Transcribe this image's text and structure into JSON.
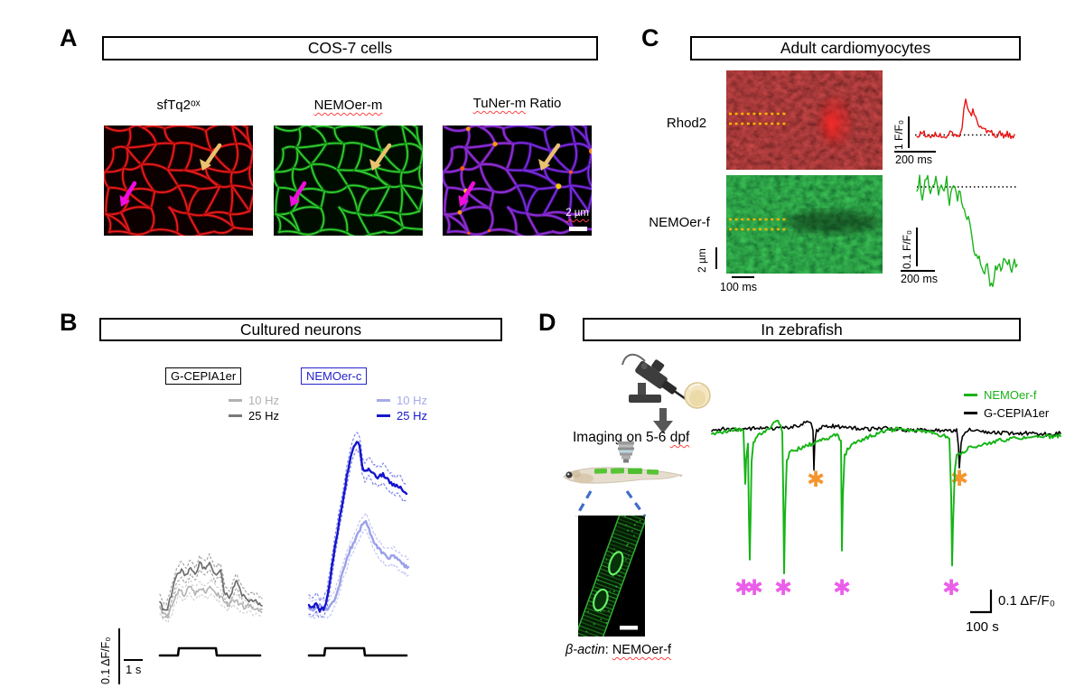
{
  "panelA": {
    "letter": "A",
    "title": "COS-7 cells",
    "img1_label": "sfTq2ᵒˣ",
    "img2_label": "NEMOer-m",
    "img3_label_sq": "TuNer-m",
    "img3_label_rest": " Ratio",
    "scalebar_label": "2 µm"
  },
  "panelB": {
    "letter": "B",
    "title": "Cultured neurons",
    "group1_label": "G-CEPIA1er",
    "group2_label": "NEMOer-c",
    "legend_10hz": "10 Hz",
    "legend_25hz": "25 Hz",
    "scale_v": "0.1 ΔF/F₀",
    "scale_h": "1 s"
  },
  "panelC": {
    "letter": "C",
    "title": "Adult cardiomyocytes",
    "row1_label": "Rhod2",
    "row2_label": "NEMOer-f",
    "img_scale_v": "2 µm",
    "img_scale_h": "100 ms",
    "trace1_scale_v": "1 F/F₀",
    "trace1_scale_h": "200 ms",
    "trace2_scale_v": "0.1 F/F₀",
    "trace2_scale_h": "200 ms"
  },
  "panelD": {
    "letter": "D",
    "title": "In zebrafish",
    "imaging_text": "Imaging on 5-6 ",
    "imaging_text_sq": "dpf",
    "inset_label_italic": "β-actin",
    "inset_label_colon": ": ",
    "inset_label_sq": "NEMOer-f",
    "legend1": "NEMOer-f",
    "legend2": "G-CEPIA1er",
    "legend1_color": "#1ab21a",
    "legend2_color": "#000000",
    "scale_v": "0.1 ΔF/F₀",
    "scale_h": "100 s",
    "asterisk": "✱",
    "orange_marker_color": "#f5952e",
    "magenta_marker_color": "#ea5fea"
  },
  "chart_data": [
    {
      "type": "line",
      "title": "Cultured neurons — G-CEPIA1er",
      "series": [
        {
          "name": "10 Hz",
          "peak_dF_F0": 0.05
        },
        {
          "name": "25 Hz",
          "peak_dF_F0": 0.09
        }
      ],
      "scale": {
        "y": "0.1 ΔF/F₀",
        "x": "1 s"
      },
      "stimulus": "field stimulation step",
      "error_bands": "dotted"
    },
    {
      "type": "line",
      "title": "Cultured neurons — NEMOer-c",
      "series": [
        {
          "name": "10 Hz",
          "peak_dF_F0": 0.16
        },
        {
          "name": "25 Hz",
          "peak_dF_F0": 0.3
        }
      ],
      "scale": {
        "y": "0.1 ΔF/F₀",
        "x": "1 s"
      },
      "stimulus": "field stimulation step",
      "error_bands": "dotted"
    },
    {
      "type": "line",
      "title": "Adult cardiomyocyte line scan — Rhod2",
      "description": "noisy baseline (dotted zero line) with one upward Ca²⁺ transient of ≈1.2 F/F₀",
      "scale": {
        "y": "1 F/F₀",
        "x": "200 ms"
      }
    },
    {
      "type": "line",
      "title": "Adult cardiomyocyte line scan — NEMOer-f",
      "description": "noisy baseline (dotted line) followed by sustained drop of ≈0.2 F/F₀",
      "scale": {
        "y": "0.1 F/F₀",
        "x": "200 ms"
      }
    },
    {
      "type": "line",
      "title": "In zebrafish — NEMOer-f vs G-CEPIA1er",
      "description": "green NEMOer-f trace shows 4 large downward transients (≈0.6 ΔF/F₀, magenta asterisks, first is a doublet); black G-CEPIA1er trace shows 2 small dips (≈0.18 ΔF/F₀, orange asterisks)",
      "scale": {
        "y": "0.1 ΔF/F₀",
        "x": "100 s"
      }
    }
  ]
}
